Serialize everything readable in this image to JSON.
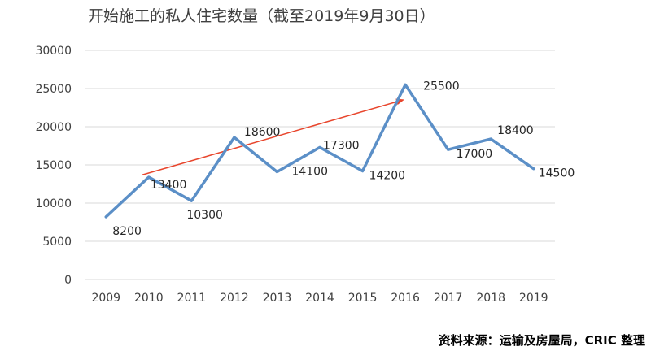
{
  "chart_data": {
    "type": "line",
    "title": "开始施工的私人住宅数量（截至2019年9月30日）",
    "x": [
      "2009",
      "2010",
      "2011",
      "2012",
      "2013",
      "2014",
      "2015",
      "2016",
      "2017",
      "2018",
      "2019"
    ],
    "values": [
      8200,
      13400,
      10300,
      18600,
      14100,
      17300,
      14200,
      25500,
      17000,
      18400,
      14500
    ],
    "data_labels": [
      "8200",
      "13400",
      "10300",
      "18600",
      "14100",
      "17300",
      "14200",
      "25500",
      "17000",
      "18400",
      "14500"
    ],
    "y_ticks": [
      "0",
      "5000",
      "10000",
      "15000",
      "20000",
      "25000",
      "30000"
    ],
    "ylim": [
      0,
      30000
    ],
    "grid": true,
    "legend": "none",
    "line_color": "#5b8fc7",
    "trend_arrow_color": "#e8462d",
    "trend_arrow": {
      "from_x": "2010",
      "from_y": 13700,
      "to_x": "2016",
      "to_y": 23500
    }
  },
  "source": "资料来源：运输及房屋局，CRIC 整理"
}
